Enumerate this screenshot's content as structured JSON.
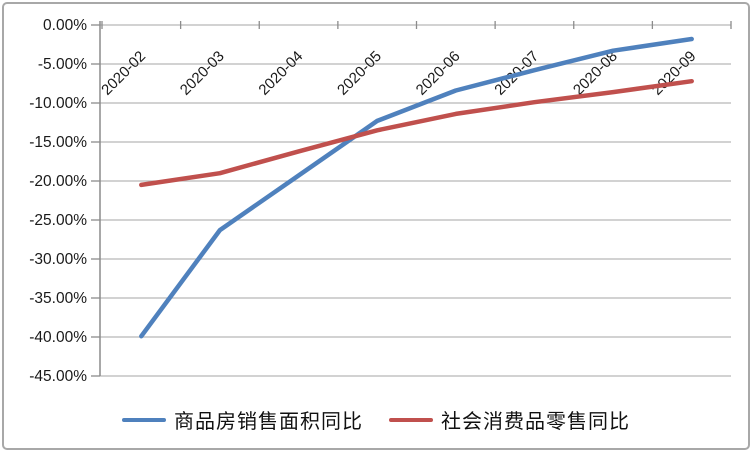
{
  "frame": {
    "background": "#ffffff",
    "border_color": "#a8a8a8"
  },
  "chart_data": {
    "type": "line",
    "title": "",
    "categories": [
      "2020-02",
      "2020-03",
      "2020-04",
      "2020-05",
      "2020-06",
      "2020-07",
      "2020-08",
      "2020-09"
    ],
    "series": [
      {
        "name": "商品房销售面积同比",
        "color": "#4f81bd",
        "values": [
          -39.9,
          -26.3,
          -19.3,
          -12.3,
          -8.4,
          -5.8,
          -3.3,
          -1.8
        ]
      },
      {
        "name": "社会消费品零售同比",
        "color": "#c0504d",
        "values": [
          -20.5,
          -19.0,
          -16.2,
          -13.5,
          -11.4,
          -9.9,
          -8.6,
          -7.2
        ]
      }
    ],
    "y_axis": {
      "min": -45,
      "max": 0,
      "step": 5,
      "tick_labels": [
        "0.00%",
        "-5.00%",
        "-10.00%",
        "-15.00%",
        "-20.00%",
        "-25.00%",
        "-30.00%",
        "-35.00%",
        "-40.00%",
        "-45.00%"
      ]
    },
    "x_axis": {
      "label_rotation_deg": 45,
      "position": "top-zero-line"
    },
    "grid": true,
    "legend_position": "bottom",
    "style": {
      "gridline_color": "#b7b7b7",
      "axis_color": "#8c8c8c",
      "tick_color": "#8c8c8c",
      "text_color": "#1a1a1a",
      "line_width": 4.5
    }
  }
}
